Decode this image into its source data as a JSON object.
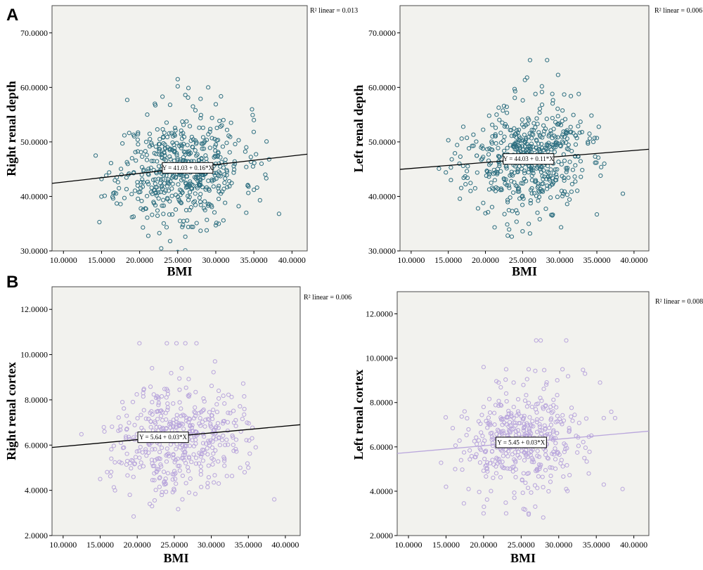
{
  "panels": [
    {
      "letter": "A"
    },
    {
      "letter": "B"
    }
  ],
  "chart_data": [
    {
      "type": "scatter",
      "xlabel": "BMI",
      "ylabel": "Right renal depth",
      "xlim": [
        8.5,
        42
      ],
      "ylim": [
        30,
        75
      ],
      "xticks": [
        "10.0000",
        "15.0000",
        "20.0000",
        "25.0000",
        "30.0000",
        "35.0000",
        "40.0000"
      ],
      "xtick_values": [
        10,
        15,
        20,
        25,
        30,
        35,
        40
      ],
      "yticks": [
        "30.0000",
        "40.0000",
        "50.0000",
        "60.0000",
        "70.0000"
      ],
      "ytick_values": [
        30,
        40,
        50,
        60,
        70
      ],
      "r2_label": "R² linear = 0.013",
      "fit": {
        "intercept": 41.03,
        "slope": 0.16,
        "equation": "Y = 41.03 + 0.16*X",
        "label_x": 26.3
      },
      "marker_color": "#2e6f80",
      "line_color": "#000000",
      "n_points": 520,
      "x_center": 25.5,
      "x_spread": 4.0,
      "seed": 11,
      "points": [
        [
          18,
          51.2
        ],
        [
          17,
          38.7
        ],
        [
          19,
          47
        ],
        [
          21,
          55
        ],
        [
          22,
          57
        ],
        [
          23,
          58.3
        ],
        [
          24,
          56.8
        ],
        [
          25,
          61.5
        ],
        [
          25,
          60.2
        ],
        [
          26,
          58.6
        ],
        [
          27,
          56.5
        ],
        [
          28,
          57.9
        ],
        [
          29,
          60
        ],
        [
          30,
          56.9
        ],
        [
          31,
          54
        ],
        [
          32,
          53.5
        ],
        [
          33,
          50.3
        ],
        [
          34,
          49
        ],
        [
          35,
          54
        ],
        [
          36,
          46
        ],
        [
          36.5,
          44
        ],
        [
          37,
          46.8
        ],
        [
          38.3,
          36.8
        ],
        [
          35,
          41.2
        ],
        [
          35.8,
          39.3
        ],
        [
          34,
          37
        ],
        [
          33,
          38.2
        ],
        [
          30,
          34.7
        ],
        [
          28,
          33.7
        ],
        [
          27,
          34.4
        ],
        [
          26,
          32.6
        ],
        [
          26,
          30.1
        ],
        [
          25,
          29.8
        ],
        [
          24,
          31.8
        ],
        [
          21,
          36.1
        ],
        [
          19,
          36.2
        ],
        [
          18,
          39.7
        ],
        [
          15,
          43.2
        ],
        [
          16,
          44.4
        ],
        [
          17,
          43.5
        ],
        [
          31,
          35.6
        ],
        [
          29,
          38.3
        ],
        [
          25.3,
          35.5
        ]
      ]
    },
    {
      "type": "scatter",
      "xlabel": "BMI",
      "ylabel": "Left renal depth",
      "xlim": [
        8.5,
        42
      ],
      "ylim": [
        30,
        75
      ],
      "xticks": [
        "10.0000",
        "15.0000",
        "20.0000",
        "25.0000",
        "30.0000",
        "35.0000",
        "40.0000"
      ],
      "xtick_values": [
        10,
        15,
        20,
        25,
        30,
        35,
        40
      ],
      "yticks": [
        "30.0000",
        "40.0000",
        "50.0000",
        "60.0000",
        "70.0000"
      ],
      "ytick_values": [
        30,
        40,
        50,
        60,
        70
      ],
      "r2_label": "R² linear = 0.006",
      "fit": {
        "intercept": 44.03,
        "slope": 0.11,
        "equation": "Y = 44.03 + 0.11*X",
        "label_x": 25.8
      },
      "marker_color": "#2e6f80",
      "line_color": "#000000",
      "n_points": 520,
      "x_center": 25.5,
      "x_spread": 4.0,
      "seed": 23,
      "points": [
        [
          26,
          65
        ],
        [
          28.3,
          65
        ],
        [
          25.6,
          61.8
        ],
        [
          27.6,
          60.2
        ],
        [
          24,
          59.3
        ],
        [
          29,
          58.8
        ],
        [
          30.6,
          58.7
        ],
        [
          31.5,
          58.4
        ],
        [
          22.5,
          56.6
        ],
        [
          20.5,
          54.8
        ],
        [
          21.5,
          55
        ],
        [
          33,
          51.8
        ],
        [
          34,
          51.5
        ],
        [
          35,
          50.7
        ],
        [
          36,
          46
        ],
        [
          35.5,
          43.8
        ],
        [
          38.5,
          40.5
        ],
        [
          35,
          36.7
        ],
        [
          31,
          38.6
        ],
        [
          29,
          36.5
        ],
        [
          27,
          37
        ],
        [
          26,
          33.2
        ],
        [
          25,
          33.6
        ],
        [
          23,
          32.8
        ],
        [
          20,
          36.9
        ],
        [
          19,
          37.8
        ],
        [
          18,
          41
        ],
        [
          17,
          45.6
        ],
        [
          15,
          50.3
        ],
        [
          16.8,
          50.6
        ],
        [
          32.5,
          47.3
        ]
      ]
    },
    {
      "type": "scatter",
      "xlabel": "BMI",
      "ylabel": "Right renal cortex",
      "xlim": [
        8.5,
        42
      ],
      "ylim": [
        2,
        13
      ],
      "xticks": [
        "10.0000",
        "15.0000",
        "20.0000",
        "25.0000",
        "30.0000",
        "35.0000",
        "40.0000"
      ],
      "xtick_values": [
        10,
        15,
        20,
        25,
        30,
        35,
        40
      ],
      "yticks": [
        "2.0000",
        "4.0000",
        "6.0000",
        "8.0000",
        "10.0000",
        "12.0000"
      ],
      "ytick_values": [
        2,
        4,
        6,
        8,
        10,
        12
      ],
      "r2_label": "R² linear = 0.006",
      "fit": {
        "intercept": 5.64,
        "slope": 0.03,
        "equation": "Y = 5.64 + 0.03*X",
        "label_x": 23.5
      },
      "marker_color": "#b9a6dc",
      "line_color": "#000000",
      "n_points": 430,
      "x_center": 25.5,
      "x_spread": 4.2,
      "seed": 37,
      "points": [
        [
          20.3,
          10.5
        ],
        [
          24,
          10.5
        ],
        [
          25.3,
          10.5
        ],
        [
          26.5,
          10.5
        ],
        [
          28,
          10.5
        ],
        [
          30.5,
          9.7
        ],
        [
          22,
          9.4
        ],
        [
          26,
          9.4
        ],
        [
          31,
          8.4
        ],
        [
          33.3,
          7.1
        ],
        [
          34,
          6.6
        ],
        [
          35.5,
          6.3
        ],
        [
          36,
          5.9
        ],
        [
          38.5,
          3.6
        ],
        [
          35,
          5
        ],
        [
          34.5,
          4.8
        ],
        [
          31,
          4.3
        ],
        [
          28.6,
          4.7
        ],
        [
          27,
          3.9
        ],
        [
          26.1,
          3.6
        ],
        [
          25,
          4
        ],
        [
          22,
          3.3
        ],
        [
          21.7,
          3.4
        ],
        [
          19,
          3.8
        ],
        [
          17,
          4
        ],
        [
          15,
          4.5
        ],
        [
          16.5,
          5.4
        ],
        [
          17.8,
          6.1
        ],
        [
          18,
          7.9
        ],
        [
          20.8,
          8.3
        ]
      ]
    },
    {
      "type": "scatter",
      "xlabel": "BMI",
      "ylabel": "Left renal cortex",
      "xlim": [
        8.5,
        42
      ],
      "ylim": [
        2,
        13
      ],
      "xticks": [
        "10.0000",
        "15.0000",
        "20.0000",
        "25.0000",
        "30.0000",
        "35.0000",
        "40.0000"
      ],
      "xtick_values": [
        10,
        15,
        20,
        25,
        30,
        35,
        40
      ],
      "yticks": [
        "2.0000",
        "4.0000",
        "6.0000",
        "8.0000",
        "10.0000",
        "12.0000"
      ],
      "ytick_values": [
        2,
        4,
        6,
        8,
        10,
        12
      ],
      "r2_label": "R² linear = 0.008",
      "fit": {
        "intercept": 5.45,
        "slope": 0.03,
        "equation": "Y = 5.45 + 0.03*X",
        "label_x": 25.0
      },
      "marker_color": "#b9a6dc",
      "line_color": "#b9a6dc",
      "n_points": 430,
      "x_center": 25.5,
      "x_spread": 4.2,
      "seed": 53,
      "points": [
        [
          27,
          10.8
        ],
        [
          27.6,
          10.8
        ],
        [
          31,
          10.8
        ],
        [
          20,
          9.6
        ],
        [
          23,
          9.5
        ],
        [
          26,
          9.5
        ],
        [
          30.5,
          9.5
        ],
        [
          33.5,
          9.3
        ],
        [
          35.5,
          8.9
        ],
        [
          36,
          7.3
        ],
        [
          37.5,
          7.3
        ],
        [
          38.5,
          4.1
        ],
        [
          36,
          4.3
        ],
        [
          34,
          4.8
        ],
        [
          31,
          4.1
        ],
        [
          26,
          3
        ],
        [
          23,
          3
        ],
        [
          20,
          3
        ],
        [
          18,
          4.1
        ],
        [
          15,
          4.2
        ],
        [
          17,
          5.4
        ],
        [
          20,
          7.8
        ],
        [
          22,
          8.9
        ],
        [
          24,
          8.9
        ]
      ]
    }
  ]
}
